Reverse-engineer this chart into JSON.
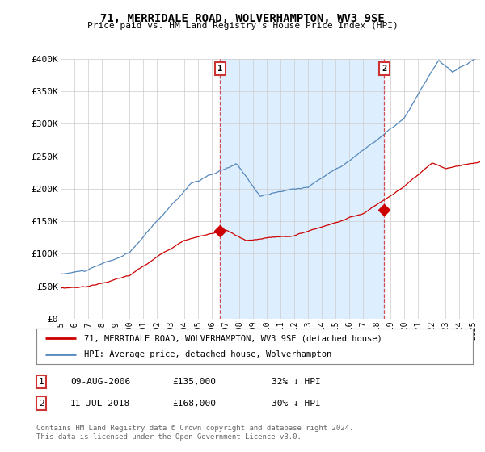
{
  "title": "71, MERRIDALE ROAD, WOLVERHAMPTON, WV3 9SE",
  "subtitle": "Price paid vs. HM Land Registry's House Price Index (HPI)",
  "ylabel_ticks": [
    "£0",
    "£50K",
    "£100K",
    "£150K",
    "£200K",
    "£250K",
    "£300K",
    "£350K",
    "£400K"
  ],
  "ylim": [
    0,
    400000
  ],
  "xlim_start": 1995.0,
  "xlim_end": 2025.5,
  "sale1_x": 2006.6,
  "sale1_y": 135000,
  "sale2_x": 2018.53,
  "sale2_y": 168000,
  "sale1_label": "1",
  "sale2_label": "2",
  "sale1_date": "09-AUG-2006",
  "sale1_price": "£135,000",
  "sale1_hpi": "32% ↓ HPI",
  "sale2_date": "11-JUL-2018",
  "sale2_price": "£168,000",
  "sale2_hpi": "30% ↓ HPI",
  "legend_line1": "71, MERRIDALE ROAD, WOLVERHAMPTON, WV3 9SE (detached house)",
  "legend_line2": "HPI: Average price, detached house, Wolverhampton",
  "footer": "Contains HM Land Registry data © Crown copyright and database right 2024.\nThis data is licensed under the Open Government Licence v3.0.",
  "line_color_red": "#cc0000",
  "line_color_blue": "#5588bb",
  "shade_color": "#ddeeff",
  "background_color": "#ffffff",
  "grid_color": "#cccccc",
  "annotation_box_color": "#cc3333"
}
